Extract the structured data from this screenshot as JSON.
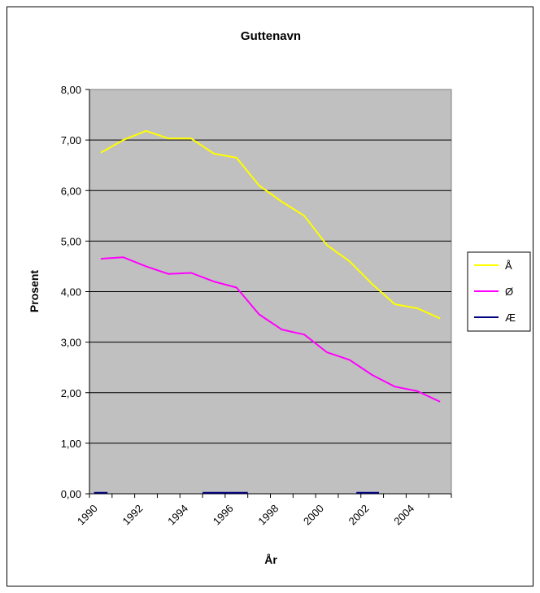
{
  "chart_data": {
    "type": "line",
    "title": "Guttenavn",
    "xlabel": "År",
    "ylabel": "Prosent",
    "ylim": [
      0,
      8
    ],
    "xlim": [
      1990,
      2006
    ],
    "plot_background": "#c0c0c0",
    "grid": true,
    "legend_position": "right",
    "y_ticks": [
      "0,00",
      "1,00",
      "2,00",
      "3,00",
      "4,00",
      "5,00",
      "6,00",
      "7,00",
      "8,00"
    ],
    "y_tick_values": [
      0,
      1,
      2,
      3,
      4,
      5,
      6,
      7,
      8
    ],
    "x_ticks": [
      "1990",
      "1992",
      "1994",
      "1996",
      "1998",
      "2000",
      "2002",
      "2004"
    ],
    "x_tick_values": [
      1990,
      1992,
      1994,
      1996,
      1998,
      2000,
      2002,
      2004
    ],
    "x": [
      1990.5,
      1991.5,
      1992.5,
      1993.5,
      1994.5,
      1995.5,
      1996.5,
      1997.5,
      1998.5,
      1999.5,
      2000.5,
      2001.5,
      2002.5,
      2003.5,
      2004.5,
      2005.5
    ],
    "series": [
      {
        "name": "Å",
        "color": "#ffff00",
        "values": [
          6.75,
          7.0,
          7.18,
          7.03,
          7.03,
          6.73,
          6.65,
          6.1,
          5.78,
          5.5,
          4.92,
          4.6,
          4.15,
          3.75,
          3.67,
          3.47
        ]
      },
      {
        "name": "Ø",
        "color": "#ff00ff",
        "values": [
          4.65,
          4.68,
          4.5,
          4.35,
          4.37,
          4.2,
          4.08,
          3.55,
          3.25,
          3.15,
          2.8,
          2.65,
          2.35,
          2.12,
          2.03,
          1.82
        ]
      },
      {
        "name": "Æ",
        "color": "#000080",
        "segments": [
          {
            "x": [
              1990.2,
              1990.8
            ],
            "values": [
              0.02,
              0.02
            ]
          },
          {
            "x": [
              1995.0,
              1997.0
            ],
            "values": [
              0.02,
              0.02
            ]
          },
          {
            "x": [
              2001.8,
              2002.8
            ],
            "values": [
              0.02,
              0.02
            ]
          }
        ]
      }
    ]
  }
}
